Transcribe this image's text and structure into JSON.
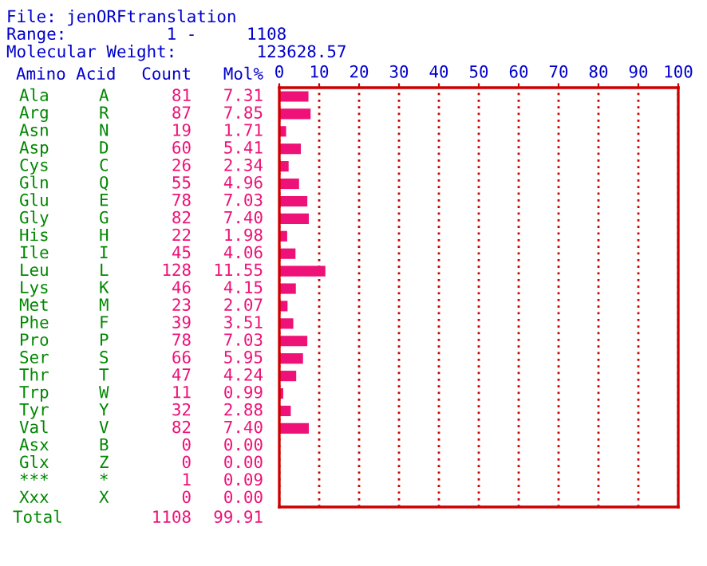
{
  "chart_data": {
    "type": "bar",
    "orientation": "horizontal",
    "categories": [
      "Ala",
      "Arg",
      "Asn",
      "Asp",
      "Cys",
      "Gln",
      "Glu",
      "Gly",
      "His",
      "Ile",
      "Leu",
      "Lys",
      "Met",
      "Phe",
      "Pro",
      "Ser",
      "Thr",
      "Trp",
      "Tyr",
      "Val",
      "Asx",
      "Glx",
      "***",
      "Xxx"
    ],
    "values": [
      7.31,
      7.85,
      1.71,
      5.41,
      2.34,
      4.96,
      7.03,
      7.4,
      1.98,
      4.06,
      11.55,
      4.15,
      2.07,
      3.51,
      7.03,
      5.95,
      4.24,
      0.99,
      2.88,
      7.4,
      0.0,
      0.0,
      0.09,
      0.0
    ],
    "value_labels": [
      "7.31",
      "7.85",
      "1.71",
      "5.41",
      "2.34",
      "4.96",
      "7.03",
      "7.40",
      "1.98",
      "4.06",
      "11.55",
      "4.15",
      "2.07",
      "3.51",
      "7.03",
      "5.95",
      "4.24",
      "0.99",
      "2.88",
      "7.40",
      "0.00",
      "0.00",
      "0.09",
      "0.00"
    ],
    "color": "#ee1177",
    "x2lim": [
      0,
      100
    ],
    "x2ticks": [
      0,
      10,
      20,
      30,
      40,
      50,
      60,
      70,
      80,
      90,
      100
    ],
    "grid": "x",
    "annotations": [
      "File: jenORFtranslation",
      "Range:          1 -     1108",
      "Molecular Weight:        123628.57",
      "Amino Acid",
      "Count",
      "Mol%",
      "A",
      "81",
      "R",
      "87",
      "N",
      "19",
      "D",
      "60",
      "C",
      "26",
      "Q",
      "55",
      "E",
      "78",
      "G",
      "82",
      "H",
      "22",
      "I",
      "45",
      "L",
      "128",
      "K",
      "46",
      "M",
      "23",
      "F",
      "39",
      "P",
      "78",
      "S",
      "66",
      "T",
      "47",
      "W",
      "11",
      "Y",
      "32",
      "V",
      "82",
      "B",
      "0",
      "Z",
      "0",
      "*",
      "1",
      "X",
      "0",
      "Total",
      "1108",
      "99.91"
    ]
  }
}
